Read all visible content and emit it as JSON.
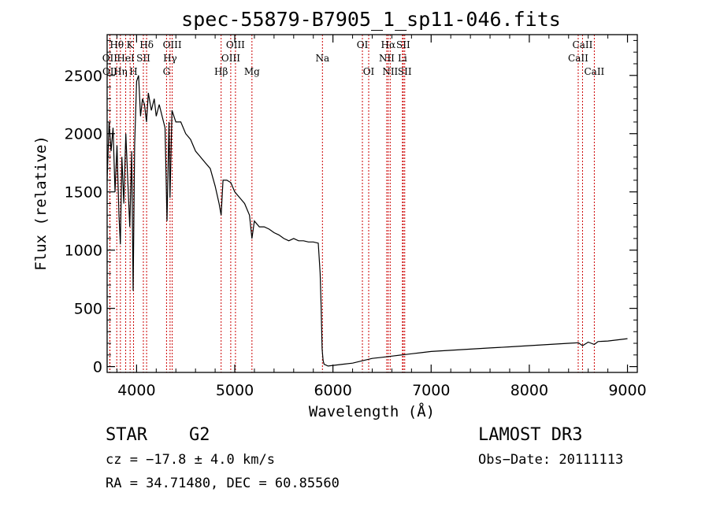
{
  "chart_data": {
    "type": "line",
    "title": "spec-55879-B7905_1_sp11-046.fits",
    "xlabel": "Wavelength (Å)",
    "ylabel": "Flux (relative)",
    "xlim": [
      3700,
      9100
    ],
    "ylim": [
      -50,
      2850
    ],
    "xticks": [
      4000,
      5000,
      6000,
      7000,
      8000,
      9000
    ],
    "yticks": [
      0,
      500,
      1000,
      1500,
      2000,
      2500
    ],
    "line_color": "#000000",
    "marker_color": "#cc0000",
    "series": [
      {
        "x": [
          3700,
          3720,
          3740,
          3760,
          3780,
          3800,
          3820,
          3835,
          3850,
          3870,
          3890,
          3910,
          3930,
          3950,
          3965,
          3980,
          4000,
          4020,
          4040,
          4060,
          4080,
          4101,
          4120,
          4150,
          4180,
          4200,
          4230,
          4260,
          4290,
          4310,
          4330,
          4340,
          4360,
          4400,
          4450,
          4500,
          4550,
          4600,
          4650,
          4700,
          4750,
          4800,
          4840,
          4861,
          4880,
          4920,
          4960,
          5000,
          5050,
          5100,
          5150,
          5175,
          5200,
          5250,
          5300,
          5350,
          5400,
          5450,
          5500,
          5550,
          5600,
          5650,
          5700,
          5750,
          5800,
          5850,
          5870,
          5880,
          5890,
          5900,
          5910,
          5950,
          6000,
          6100,
          6200,
          6300,
          6400,
          6500,
          6600,
          6700,
          6800,
          6900,
          7000,
          7200,
          7400,
          7600,
          7800,
          8000,
          8200,
          8400,
          8500,
          8542,
          8600,
          8662,
          8700,
          8800,
          8900,
          9000
        ],
        "y": [
          1600,
          2100,
          1850,
          2050,
          1500,
          1900,
          1300,
          1050,
          1800,
          1400,
          2000,
          1600,
          1200,
          1850,
          650,
          1900,
          2450,
          2500,
          2150,
          2300,
          2250,
          2100,
          2350,
          2200,
          2300,
          2150,
          2250,
          2150,
          2050,
          1250,
          2100,
          1450,
          2200,
          2100,
          2100,
          2000,
          1950,
          1850,
          1800,
          1750,
          1700,
          1550,
          1400,
          1300,
          1600,
          1600,
          1580,
          1500,
          1450,
          1400,
          1300,
          1100,
          1250,
          1200,
          1200,
          1180,
          1150,
          1130,
          1100,
          1080,
          1100,
          1080,
          1080,
          1070,
          1070,
          1060,
          800,
          500,
          150,
          50,
          20,
          5,
          10,
          20,
          30,
          50,
          70,
          80,
          90,
          100,
          110,
          120,
          130,
          140,
          150,
          160,
          170,
          180,
          190,
          200,
          205,
          180,
          210,
          190,
          215,
          220,
          230,
          240
        ]
      }
    ],
    "lines": [
      {
        "name": "Hθ",
        "x": 3798,
        "row": 1
      },
      {
        "name": "OII",
        "x": 3727,
        "row": 2
      },
      {
        "name": "OII",
        "x": 3729,
        "row": 3
      },
      {
        "name": "Hη",
        "x": 3835,
        "row": 3
      },
      {
        "name": "HeI",
        "x": 3889,
        "row": 2
      },
      {
        "name": "K",
        "x": 3934,
        "row": 1
      },
      {
        "name": "H",
        "x": 3969,
        "row": 3
      },
      {
        "name": "SII",
        "x": 4069,
        "row": 2
      },
      {
        "name": "Hδ",
        "x": 4102,
        "row": 1
      },
      {
        "name": "OIII",
        "x": 4363,
        "row": 1
      },
      {
        "name": "Hγ",
        "x": 4341,
        "row": 2
      },
      {
        "name": "G",
        "x": 4305,
        "row": 3
      },
      {
        "name": "Hβ",
        "x": 4861,
        "row": 3
      },
      {
        "name": "OIII",
        "x": 5007,
        "row": 1
      },
      {
        "name": "OIII",
        "x": 4959,
        "row": 2
      },
      {
        "name": "Mg",
        "x": 5175,
        "row": 3
      },
      {
        "name": "Na",
        "x": 5893,
        "row": 2
      },
      {
        "name": "OI",
        "x": 6300,
        "row": 1
      },
      {
        "name": "OI",
        "x": 6364,
        "row": 3
      },
      {
        "name": "Hα",
        "x": 6563,
        "row": 1
      },
      {
        "name": "NII",
        "x": 6548,
        "row": 2
      },
      {
        "name": "NII",
        "x": 6583,
        "row": 3
      },
      {
        "name": "SII",
        "x": 6716,
        "row": 1
      },
      {
        "name": "SII",
        "x": 6731,
        "row": 3
      },
      {
        "name": "Li",
        "x": 6708,
        "row": 2
      },
      {
        "name": "CaII",
        "x": 8542,
        "row": 1
      },
      {
        "name": "CaII",
        "x": 8498,
        "row": 2
      },
      {
        "name": "CaII",
        "x": 8662,
        "row": 3
      }
    ]
  },
  "info": {
    "class": "STAR",
    "subclass": "G2",
    "survey": "LAMOST DR3",
    "cz": "cz = −17.8 ± 4.0 km/s",
    "obs_date": "Obs−Date: 20111113",
    "coords": "RA =  34.71480, DEC =  60.85560"
  }
}
